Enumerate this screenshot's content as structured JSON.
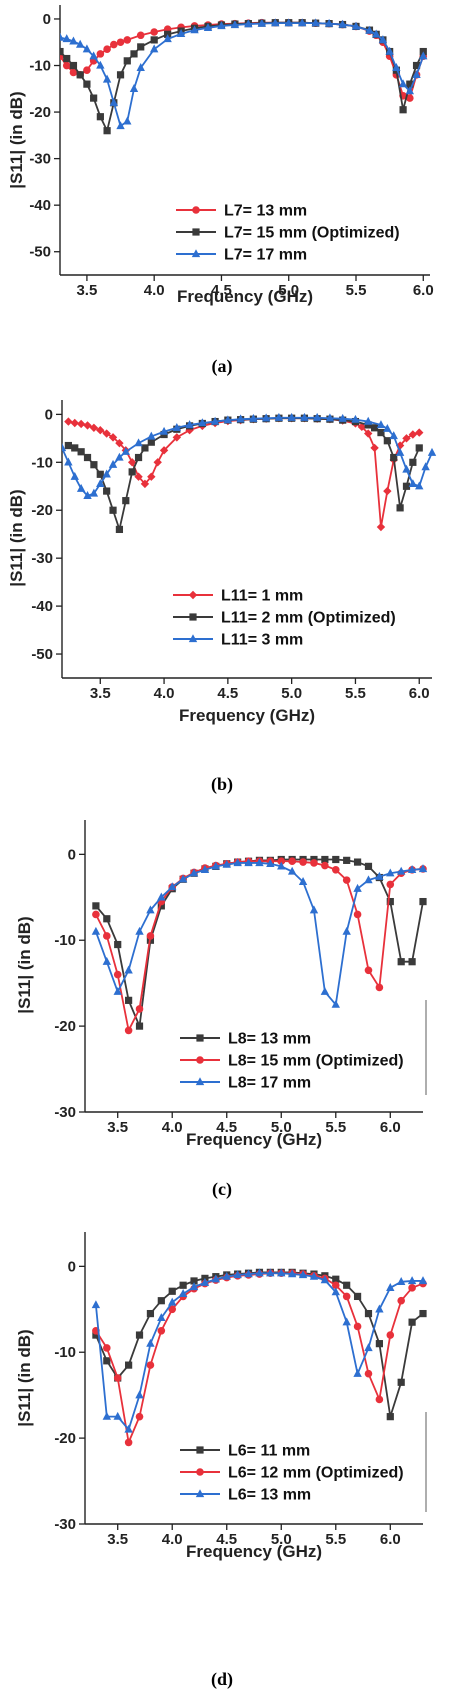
{
  "chart_data": [
    {
      "type": "line",
      "panel": "(a)",
      "xlabel": "Frequency (GHz)",
      "ylabel": "|S11| (in dB)",
      "xlim": [
        3.3,
        6.05
      ],
      "ylim": [
        -55,
        3
      ],
      "xticks": [
        "3.5",
        "4.0",
        "4.5",
        "5.0",
        "5.5",
        "6.0"
      ],
      "xtick_values": [
        3.5,
        4.0,
        4.5,
        5.0,
        5.5,
        6.0
      ],
      "yticks": [
        "0",
        "-10",
        "-20",
        "-30",
        "-40",
        "-50"
      ],
      "ytick_values": [
        0,
        -10,
        -20,
        -30,
        -40,
        -50
      ],
      "legend_position": "lower-center",
      "series": [
        {
          "name": "L7= 13 mm",
          "color": "#e8313b",
          "marker": "circle",
          "x": [
            3.3,
            3.35,
            3.4,
            3.45,
            3.5,
            3.55,
            3.6,
            3.65,
            3.7,
            3.75,
            3.8,
            3.9,
            4.0,
            4.1,
            4.2,
            4.3,
            4.4,
            4.5,
            4.6,
            4.7,
            4.8,
            4.9,
            5.0,
            5.1,
            5.2,
            5.3,
            5.4,
            5.5,
            5.6,
            5.65,
            5.7,
            5.75,
            5.8,
            5.85,
            5.9,
            5.95,
            6.0
          ],
          "y": [
            -8,
            -10,
            -11.5,
            -12,
            -11,
            -9,
            -7.5,
            -6.5,
            -5.5,
            -5,
            -4.5,
            -3.5,
            -2.8,
            -2.2,
            -1.8,
            -1.5,
            -1.3,
            -1.1,
            -1,
            -0.9,
            -0.8,
            -0.8,
            -0.8,
            -0.8,
            -0.9,
            -1,
            -1.2,
            -1.6,
            -2.6,
            -3.5,
            -5,
            -8,
            -12,
            -16.5,
            -17,
            -12,
            -8
          ]
        },
        {
          "name": "L7= 15 mm (Optimized)",
          "color": "#3a3a3a",
          "marker": "square",
          "x": [
            3.3,
            3.35,
            3.4,
            3.45,
            3.5,
            3.55,
            3.6,
            3.65,
            3.7,
            3.75,
            3.8,
            3.85,
            3.9,
            4.0,
            4.1,
            4.2,
            4.3,
            4.4,
            4.5,
            4.6,
            4.7,
            4.8,
            4.9,
            5.0,
            5.1,
            5.2,
            5.3,
            5.4,
            5.5,
            5.6,
            5.65,
            5.7,
            5.75,
            5.8,
            5.85,
            5.9,
            5.95,
            6.0
          ],
          "y": [
            -7,
            -8.5,
            -10,
            -12,
            -14,
            -17,
            -21,
            -24,
            -18,
            -12,
            -9,
            -7.5,
            -6,
            -4.5,
            -3.3,
            -2.6,
            -2,
            -1.6,
            -1.3,
            -1.1,
            -1,
            -0.9,
            -0.8,
            -0.8,
            -0.8,
            -0.9,
            -1,
            -1.2,
            -1.6,
            -2.4,
            -3.3,
            -4.5,
            -7,
            -11,
            -19.5,
            -14,
            -10,
            -7
          ]
        },
        {
          "name": "L7= 17 mm",
          "color": "#2d6fd0",
          "marker": "triangle",
          "x": [
            3.3,
            3.35,
            3.4,
            3.45,
            3.5,
            3.55,
            3.6,
            3.65,
            3.7,
            3.75,
            3.8,
            3.85,
            3.9,
            4.0,
            4.1,
            4.2,
            4.3,
            4.4,
            4.5,
            4.6,
            4.7,
            4.8,
            4.9,
            5.0,
            5.1,
            5.2,
            5.3,
            5.4,
            5.5,
            5.6,
            5.65,
            5.7,
            5.75,
            5.8,
            5.85,
            5.9,
            5.95,
            6.0
          ],
          "y": [
            -4,
            -4.3,
            -4.8,
            -5.5,
            -6.5,
            -8,
            -10,
            -13,
            -18,
            -23,
            -22,
            -15,
            -10.5,
            -6.5,
            -4.3,
            -3.2,
            -2.4,
            -1.9,
            -1.5,
            -1.3,
            -1.1,
            -1,
            -0.9,
            -0.9,
            -0.9,
            -0.9,
            -1,
            -1.2,
            -1.6,
            -2.5,
            -3.3,
            -4.5,
            -7,
            -10.5,
            -14,
            -15.5,
            -12,
            -8
          ]
        }
      ]
    },
    {
      "type": "line",
      "panel": "(b)",
      "xlabel": "Frequency (GHz)",
      "ylabel": "|S11| (in dB)",
      "xlim": [
        3.2,
        6.1
      ],
      "ylim": [
        -55,
        3
      ],
      "xticks": [
        "3.5",
        "4.0",
        "4.5",
        "5.0",
        "5.5",
        "6.0"
      ],
      "xtick_values": [
        3.5,
        4.0,
        4.5,
        5.0,
        5.5,
        6.0
      ],
      "yticks": [
        "0",
        "-10",
        "-20",
        "-30",
        "-40",
        "-50"
      ],
      "ytick_values": [
        0,
        -10,
        -20,
        -30,
        -40,
        -50
      ],
      "legend_position": "lower-center",
      "series": [
        {
          "name": "L11= 1 mm",
          "color": "#e8313b",
          "marker": "diamond",
          "x": [
            3.25,
            3.3,
            3.35,
            3.4,
            3.45,
            3.5,
            3.55,
            3.6,
            3.65,
            3.7,
            3.75,
            3.8,
            3.85,
            3.9,
            3.95,
            4.0,
            4.1,
            4.2,
            4.3,
            4.4,
            4.5,
            4.6,
            4.7,
            4.8,
            4.9,
            5.0,
            5.1,
            5.2,
            5.3,
            5.4,
            5.5,
            5.55,
            5.6,
            5.65,
            5.7,
            5.75,
            5.8,
            5.85,
            5.9,
            5.95,
            6.0
          ],
          "y": [
            -1.5,
            -1.8,
            -2,
            -2.3,
            -2.8,
            -3.3,
            -4,
            -4.8,
            -6,
            -7.5,
            -10,
            -13,
            -14.5,
            -13,
            -10,
            -7.5,
            -4.8,
            -3.3,
            -2.4,
            -1.8,
            -1.4,
            -1.2,
            -1,
            -0.9,
            -0.8,
            -0.8,
            -0.8,
            -0.9,
            -1,
            -1.3,
            -1.9,
            -2.6,
            -4,
            -7,
            -23.5,
            -16,
            -9.5,
            -6.5,
            -5,
            -4.2,
            -3.8
          ]
        },
        {
          "name": "L11= 2 mm (Optimized)",
          "color": "#3a3a3a",
          "marker": "square",
          "x": [
            3.25,
            3.3,
            3.35,
            3.4,
            3.45,
            3.5,
            3.55,
            3.6,
            3.65,
            3.7,
            3.75,
            3.8,
            3.85,
            3.9,
            4.0,
            4.1,
            4.2,
            4.3,
            4.4,
            4.5,
            4.6,
            4.7,
            4.8,
            4.9,
            5.0,
            5.1,
            5.2,
            5.3,
            5.4,
            5.5,
            5.6,
            5.65,
            5.7,
            5.75,
            5.8,
            5.85,
            5.9,
            5.95,
            6.0
          ],
          "y": [
            -6.5,
            -7,
            -7.8,
            -9,
            -10.5,
            -12.5,
            -16,
            -20,
            -24,
            -18,
            -12,
            -9,
            -7,
            -5.8,
            -4.2,
            -3.1,
            -2.4,
            -1.9,
            -1.5,
            -1.2,
            -1.1,
            -1,
            -0.9,
            -0.8,
            -0.8,
            -0.8,
            -0.9,
            -1,
            -1.2,
            -1.5,
            -2.2,
            -2.8,
            -3.8,
            -5.5,
            -9,
            -19.5,
            -15,
            -10,
            -7
          ]
        },
        {
          "name": "L11= 3 mm",
          "color": "#2d6fd0",
          "marker": "triangle",
          "x": [
            3.2,
            3.25,
            3.3,
            3.35,
            3.4,
            3.45,
            3.5,
            3.55,
            3.6,
            3.65,
            3.7,
            3.8,
            3.9,
            4.0,
            4.1,
            4.2,
            4.3,
            4.4,
            4.5,
            4.6,
            4.7,
            4.8,
            4.9,
            5.0,
            5.1,
            5.2,
            5.3,
            5.4,
            5.5,
            5.6,
            5.7,
            5.75,
            5.8,
            5.85,
            5.9,
            5.95,
            6.0,
            6.05,
            6.1
          ],
          "y": [
            -7,
            -10,
            -13,
            -15.5,
            -17,
            -16.5,
            -14.5,
            -12.5,
            -10.5,
            -9,
            -7.8,
            -6,
            -4.6,
            -3.6,
            -2.8,
            -2.2,
            -1.8,
            -1.5,
            -1.2,
            -1,
            -0.9,
            -0.8,
            -0.7,
            -0.7,
            -0.7,
            -0.7,
            -0.8,
            -0.9,
            -1.1,
            -1.5,
            -2.2,
            -3,
            -4.5,
            -8,
            -11.5,
            -14.5,
            -15,
            -11,
            -8
          ]
        }
      ]
    },
    {
      "type": "line",
      "panel": "(c)",
      "xlabel": "Frequency (GHz)",
      "ylabel": "|S11| (in dB)",
      "xlim": [
        3.2,
        6.3
      ],
      "ylim": [
        -30,
        4
      ],
      "xticks": [
        "3.5",
        "4.0",
        "4.5",
        "5.0",
        "5.5",
        "6.0"
      ],
      "xtick_values": [
        3.5,
        4.0,
        4.5,
        5.0,
        5.5,
        6.0
      ],
      "yticks": [
        "0",
        "-10",
        "-20",
        "-30"
      ],
      "ytick_values": [
        0,
        -10,
        -20,
        -30
      ],
      "legend_position": "lower-right",
      "series": [
        {
          "name": "L8= 13 mm",
          "color": "#3a3a3a",
          "marker": "square",
          "x": [
            3.3,
            3.4,
            3.5,
            3.6,
            3.7,
            3.8,
            3.9,
            4.0,
            4.1,
            4.2,
            4.3,
            4.4,
            4.5,
            4.6,
            4.7,
            4.8,
            4.9,
            5.0,
            5.1,
            5.2,
            5.3,
            5.4,
            5.5,
            5.6,
            5.7,
            5.8,
            5.9,
            6.0,
            6.1,
            6.2,
            6.3
          ],
          "y": [
            -6,
            -7.5,
            -10.5,
            -17,
            -20,
            -10,
            -6,
            -4,
            -2.9,
            -2.2,
            -1.7,
            -1.4,
            -1.1,
            -0.9,
            -0.8,
            -0.7,
            -0.7,
            -0.6,
            -0.6,
            -0.6,
            -0.6,
            -0.6,
            -0.6,
            -0.7,
            -0.9,
            -1.4,
            -2.7,
            -5.5,
            -12.5,
            -12.5,
            -5.5
          ]
        },
        {
          "name": "L8= 15 mm (Optimized)",
          "color": "#e8313b",
          "marker": "circle",
          "x": [
            3.3,
            3.4,
            3.5,
            3.6,
            3.7,
            3.8,
            3.9,
            4.0,
            4.1,
            4.2,
            4.3,
            4.4,
            4.5,
            4.6,
            4.7,
            4.8,
            4.9,
            5.0,
            5.1,
            5.2,
            5.3,
            5.4,
            5.5,
            5.6,
            5.7,
            5.8,
            5.9,
            6.0,
            6.1,
            6.2,
            6.3
          ],
          "y": [
            -7,
            -9.5,
            -14,
            -20.5,
            -18,
            -9.5,
            -5.5,
            -3.8,
            -2.8,
            -2.1,
            -1.6,
            -1.3,
            -1.1,
            -0.9,
            -0.8,
            -0.8,
            -0.8,
            -0.8,
            -0.8,
            -0.9,
            -1,
            -1.3,
            -1.8,
            -3,
            -7,
            -13.5,
            -15.5,
            -3.5,
            -2.2,
            -1.8,
            -1.7
          ]
        },
        {
          "name": "L8= 17 mm",
          "color": "#2d6fd0",
          "marker": "triangle",
          "x": [
            3.3,
            3.4,
            3.5,
            3.6,
            3.7,
            3.8,
            3.9,
            4.0,
            4.1,
            4.2,
            4.3,
            4.4,
            4.5,
            4.6,
            4.7,
            4.8,
            4.9,
            5.0,
            5.1,
            5.2,
            5.3,
            5.4,
            5.5,
            5.6,
            5.7,
            5.8,
            5.9,
            6.0,
            6.1,
            6.2,
            6.3
          ],
          "y": [
            -9,
            -12.5,
            -16,
            -13.5,
            -9,
            -6.5,
            -5,
            -3.8,
            -2.9,
            -2.2,
            -1.8,
            -1.4,
            -1.2,
            -1,
            -1,
            -1,
            -1.1,
            -1.4,
            -2,
            -3.2,
            -6.5,
            -16,
            -17.5,
            -9,
            -4,
            -3,
            -2.6,
            -2.2,
            -2,
            -1.8,
            -1.7
          ]
        }
      ]
    },
    {
      "type": "line",
      "panel": "(d)",
      "xlabel": "Frequency (GHz)",
      "ylabel": "|S11| (in dB)",
      "xlim": [
        3.2,
        6.3
      ],
      "ylim": [
        -30,
        4
      ],
      "xticks": [
        "3.5",
        "4.0",
        "4.5",
        "5.0",
        "5.5",
        "6.0"
      ],
      "xtick_values": [
        3.5,
        4.0,
        4.5,
        5.0,
        5.5,
        6.0
      ],
      "yticks": [
        "0",
        "-10",
        "-20",
        "-30"
      ],
      "ytick_values": [
        0,
        -10,
        -20,
        -30
      ],
      "legend_position": "lower-right",
      "series": [
        {
          "name": "L6= 11 mm",
          "color": "#3a3a3a",
          "marker": "square",
          "x": [
            3.3,
            3.4,
            3.5,
            3.6,
            3.7,
            3.8,
            3.9,
            4.0,
            4.1,
            4.2,
            4.3,
            4.4,
            4.5,
            4.6,
            4.7,
            4.8,
            4.9,
            5.0,
            5.1,
            5.2,
            5.3,
            5.4,
            5.5,
            5.6,
            5.7,
            5.8,
            5.9,
            6.0,
            6.1,
            6.2,
            6.3
          ],
          "y": [
            -8,
            -11,
            -13,
            -11.5,
            -8,
            -5.5,
            -4,
            -2.9,
            -2.2,
            -1.7,
            -1.4,
            -1.2,
            -1,
            -0.9,
            -0.8,
            -0.7,
            -0.7,
            -0.7,
            -0.7,
            -0.8,
            -0.9,
            -1.1,
            -1.5,
            -2.2,
            -3.5,
            -5.5,
            -9,
            -17.5,
            -13.5,
            -6.5,
            -5.5
          ]
        },
        {
          "name": "L6= 12 mm (Optimized)",
          "color": "#e8313b",
          "marker": "circle",
          "x": [
            3.3,
            3.4,
            3.5,
            3.6,
            3.7,
            3.8,
            3.9,
            4.0,
            4.1,
            4.2,
            4.3,
            4.4,
            4.5,
            4.6,
            4.7,
            4.8,
            4.9,
            5.0,
            5.1,
            5.2,
            5.3,
            5.4,
            5.5,
            5.6,
            5.7,
            5.8,
            5.9,
            6.0,
            6.1,
            6.2,
            6.3
          ],
          "y": [
            -7.5,
            -9.5,
            -13,
            -20.5,
            -17.5,
            -11.5,
            -7.5,
            -5,
            -3.5,
            -2.6,
            -2,
            -1.6,
            -1.3,
            -1.1,
            -1,
            -0.9,
            -0.8,
            -0.8,
            -0.8,
            -0.9,
            -1.1,
            -1.4,
            -2.2,
            -3.5,
            -7,
            -12.5,
            -15.5,
            -8,
            -4,
            -2.5,
            -2
          ]
        },
        {
          "name": "L6= 13 mm",
          "color": "#2d6fd0",
          "marker": "triangle",
          "x": [
            3.3,
            3.4,
            3.5,
            3.6,
            3.7,
            3.8,
            3.9,
            4.0,
            4.1,
            4.2,
            4.3,
            4.4,
            4.5,
            4.6,
            4.7,
            4.8,
            4.9,
            5.0,
            5.1,
            5.2,
            5.3,
            5.4,
            5.5,
            5.6,
            5.7,
            5.8,
            5.9,
            6.0,
            6.1,
            6.2,
            6.3
          ],
          "y": [
            -4.5,
            -17.5,
            -17.5,
            -19,
            -15,
            -9,
            -6,
            -4.2,
            -3.2,
            -2.4,
            -1.9,
            -1.5,
            -1.2,
            -1,
            -0.9,
            -0.8,
            -0.8,
            -0.8,
            -0.9,
            -1,
            -1.2,
            -1.6,
            -3,
            -6.5,
            -12.5,
            -9.5,
            -5,
            -2.5,
            -1.8,
            -1.7,
            -1.7
          ]
        }
      ]
    }
  ],
  "captions": [
    "(a)",
    "(b)",
    "(c)",
    "(d)"
  ]
}
